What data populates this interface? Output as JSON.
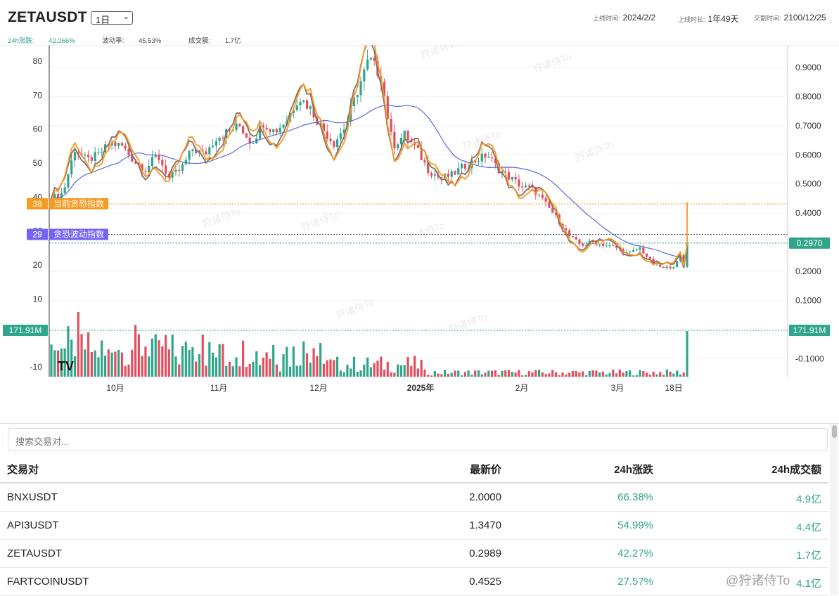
{
  "header": {
    "symbol": "ZETAUSDT",
    "interval": "1日",
    "listing_time_label": "上线时间:",
    "listing_time": "2024/2/2",
    "listing_duration_label": "上线时长:",
    "listing_duration": "1年49天",
    "delivery_time_label": "交割时间:",
    "delivery_time": "2100/12/25"
  },
  "stats": {
    "change_label": "24h涨跌:",
    "change": "42.266%",
    "volatility_label": "波动率:",
    "volatility": "45.53%",
    "volume_label": "成交额:",
    "volume": "1.7亿"
  },
  "chart_data": {
    "type": "candlestick",
    "left_axis_ticks": [
      "80",
      "70",
      "60",
      "50",
      "40",
      "30",
      "20",
      "10",
      "-10"
    ],
    "right_axis_ticks": [
      "0.9000",
      "0.8000",
      "0.7000",
      "0.6000",
      "0.5000",
      "0.4000",
      "0.3000",
      "0.2000",
      "0.1000",
      "-0.1000"
    ],
    "x_ticks": [
      "10月",
      "11月",
      "12月",
      "2025年",
      "2月",
      "3月",
      "18日"
    ],
    "price_label": "0.2970",
    "volume_label": "171.91M",
    "fear_index_value": "38",
    "fear_index_label": "当前贪恐指数",
    "fear_volatility_value": "29",
    "fear_volatility_label": "贪恐波动指数",
    "watermark": "狩诸侍To",
    "colors": {
      "up": "#2fa58b",
      "down": "#e0505f",
      "fear_line": "#f59a23",
      "index_line": "#8a6a64",
      "ma_line": "#5b6bd8",
      "vol_line": "#7364f5",
      "price_line": "#2fa58b"
    },
    "close_approx": [
      0.45,
      0.47,
      0.62,
      0.58,
      0.6,
      0.64,
      0.63,
      0.58,
      0.55,
      0.6,
      0.52,
      0.55,
      0.62,
      0.6,
      0.66,
      0.68,
      0.7,
      0.64,
      0.71,
      0.68,
      0.72,
      0.8,
      0.76,
      0.69,
      0.64,
      0.7,
      0.82,
      0.93,
      0.87,
      0.63,
      0.67,
      0.62,
      0.55,
      0.52,
      0.53,
      0.56,
      0.58,
      0.6,
      0.55,
      0.52,
      0.49,
      0.48,
      0.43,
      0.38,
      0.32,
      0.29,
      0.3,
      0.29,
      0.28,
      0.26,
      0.28,
      0.23,
      0.21,
      0.22,
      0.297
    ]
  },
  "search": {
    "placeholder": "搜索交易对..."
  },
  "table": {
    "headers": [
      "交易对",
      "最新价",
      "24h涨跌",
      "24h成交额"
    ],
    "rows": [
      [
        "BNXUSDT",
        "2.0000",
        "66.38%",
        "4.9亿"
      ],
      [
        "API3USDT",
        "1.3470",
        "54.99%",
        "4.4亿"
      ],
      [
        "ZETAUSDT",
        "0.2989",
        "42.27%",
        "1.7亿"
      ],
      [
        "FARTCOINUSDT",
        "0.4525",
        "27.57%",
        "4.1亿"
      ]
    ]
  },
  "bottom_watermark": "@狩诸侍To"
}
